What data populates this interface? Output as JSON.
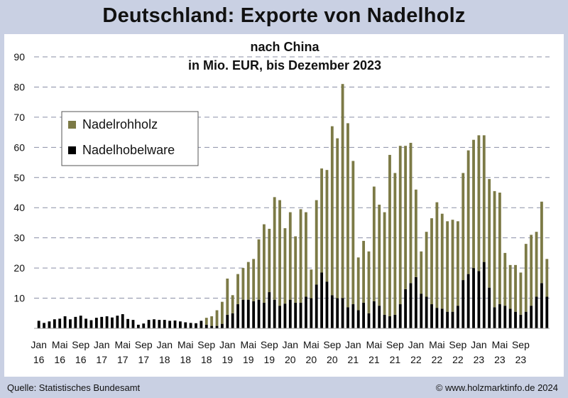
{
  "page": {
    "title": "Deutschland: Exporte von Nadelholz",
    "source": "Quelle: Statistisches Bundesamt",
    "copyright": "© www.holzmarktinfo.de  2024"
  },
  "chart_data": {
    "type": "bar",
    "stacked": true,
    "title": "nach China",
    "subtitle": "in Mio. EUR, bis Dezember 2023",
    "ylim": [
      0,
      90
    ],
    "yticks": [
      10,
      20,
      30,
      40,
      50,
      60,
      70,
      80,
      90
    ],
    "grid": true,
    "legend_position": "top-left",
    "x_tick_labels": [
      {
        "month": "Jan",
        "year": "16",
        "index": 0
      },
      {
        "month": "Mai",
        "year": "16",
        "index": 4
      },
      {
        "month": "Sep",
        "year": "16",
        "index": 8
      },
      {
        "month": "Jan",
        "year": "17",
        "index": 12
      },
      {
        "month": "Mai",
        "year": "17",
        "index": 16
      },
      {
        "month": "Sep",
        "year": "17",
        "index": 20
      },
      {
        "month": "Jan",
        "year": "18",
        "index": 24
      },
      {
        "month": "Mai",
        "year": "18",
        "index": 28
      },
      {
        "month": "Sep",
        "year": "18",
        "index": 32
      },
      {
        "month": "Jan",
        "year": "19",
        "index": 36
      },
      {
        "month": "Mai",
        "year": "19",
        "index": 40
      },
      {
        "month": "Sep",
        "year": "19",
        "index": 44
      },
      {
        "month": "Jan",
        "year": "20",
        "index": 48
      },
      {
        "month": "Mai",
        "year": "20",
        "index": 52
      },
      {
        "month": "Sep",
        "year": "20",
        "index": 56
      },
      {
        "month": "Jan",
        "year": "21",
        "index": 60
      },
      {
        "month": "Mai",
        "year": "21",
        "index": 64
      },
      {
        "month": "Sep",
        "year": "21",
        "index": 68
      },
      {
        "month": "Jan",
        "year": "22",
        "index": 72
      },
      {
        "month": "Mai",
        "year": "22",
        "index": 76
      },
      {
        "month": "Sep",
        "year": "22",
        "index": 80
      },
      {
        "month": "Jan",
        "year": "23",
        "index": 84
      },
      {
        "month": "Mai",
        "year": "23",
        "index": 88
      },
      {
        "month": "Sep",
        "year": "23",
        "index": 92
      }
    ],
    "series": [
      {
        "name": "Nadelhobelware",
        "color": "#000000",
        "values": [
          2.5,
          1.8,
          2.3,
          3.0,
          3.2,
          4.0,
          3.0,
          3.8,
          4.2,
          3.2,
          2.7,
          3.5,
          3.8,
          4.0,
          3.6,
          4.2,
          4.7,
          3.1,
          2.8,
          1.2,
          1.6,
          2.8,
          3.0,
          2.8,
          2.8,
          2.5,
          2.6,
          2.3,
          2.0,
          1.8,
          1.7,
          2.5,
          1.2,
          0.8,
          0.8,
          1.5,
          4.5,
          5.0,
          8.0,
          9.5,
          9.5,
          9.0,
          9.5,
          8.5,
          12.0,
          9.5,
          7.5,
          8.2,
          9.5,
          8.5,
          8.5,
          10.5,
          10.0,
          14.5,
          18.5,
          15.5,
          11.0,
          10.0,
          10.0,
          7.0,
          8.0,
          6.0,
          8.5,
          5.0,
          9.0,
          7.5,
          4.5,
          4.0,
          4.5,
          8.0,
          13.0,
          15.0,
          17.0,
          11.5,
          10.5,
          8.0,
          6.8,
          6.5,
          5.5,
          5.5,
          7.5,
          16.0,
          18.0,
          20.0,
          19.0,
          22.0,
          13.5,
          7.0,
          8.0,
          7.5,
          6.5,
          5.5,
          4.5,
          5.5,
          7.5,
          10.5,
          15.0,
          10.5
        ]
      },
      {
        "name": "Nadelrohholz",
        "color": "#7c7a46",
        "values": [
          0,
          0,
          0,
          0,
          0,
          0,
          0,
          0,
          0,
          0,
          0,
          0,
          0,
          0,
          0,
          0,
          0,
          0,
          0,
          0,
          0,
          0,
          0,
          0,
          0,
          0,
          0,
          0,
          0,
          0,
          0,
          0,
          2.3,
          3.2,
          5.2,
          7.3,
          12.0,
          6.0,
          10.0,
          10.5,
          12.5,
          14.0,
          20.0,
          26.0,
          21.0,
          34.0,
          35.0,
          25.0,
          29.0,
          22.0,
          31.0,
          28.0,
          9.5,
          28.0,
          34.5,
          37.0,
          56.0,
          53.0,
          71.0,
          61.0,
          47.5,
          17.5,
          20.5,
          20.5,
          38.0,
          33.5,
          34.0,
          53.5,
          47.0,
          52.5,
          47.5,
          46.5,
          29.0,
          14.0,
          21.5,
          28.5,
          35.0,
          31.5,
          30.0,
          30.5,
          28.0,
          35.5,
          41.0,
          42.5,
          45.0,
          42.0,
          36.0,
          38.5,
          37.0,
          17.5,
          14.5,
          15.5,
          14.0,
          22.5,
          23.5,
          21.5,
          27.0,
          12.5
        ]
      }
    ]
  }
}
